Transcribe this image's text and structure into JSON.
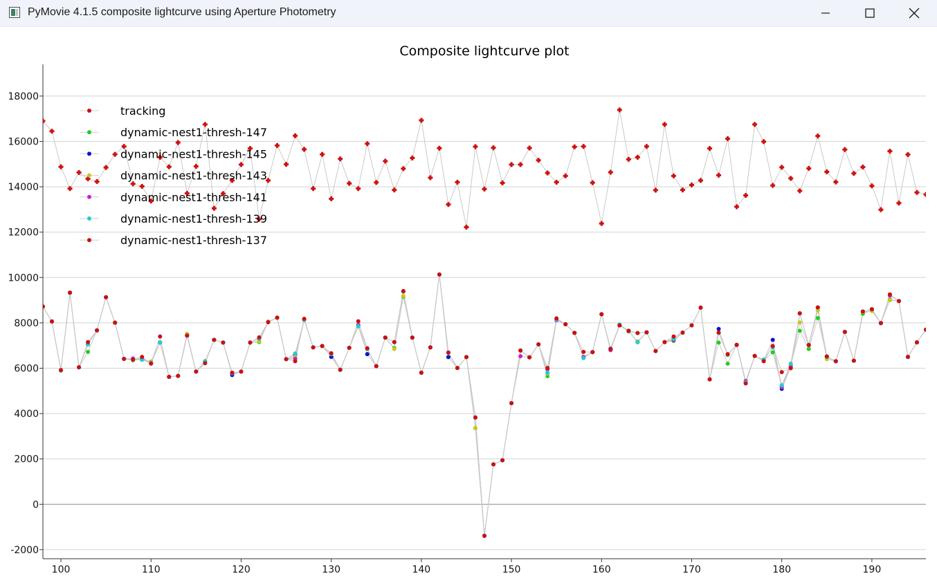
{
  "window": {
    "title": "PyMovie 4.1.5 composite lightcurve using Aperture Photometry",
    "controls": {
      "minimize": "minimize-icon",
      "maximize": "maximize-icon",
      "close": "close-icon"
    }
  },
  "chart_data": {
    "type": "scatter",
    "title": "Composite lightcurve plot",
    "xlabel": "",
    "ylabel": "",
    "xlim": [
      98,
      196
    ],
    "ylim": [
      -2400,
      19400
    ],
    "x_ticks": [
      100,
      110,
      120,
      130,
      140,
      150,
      160,
      170,
      180,
      190
    ],
    "y_ticks": [
      -2000,
      0,
      2000,
      4000,
      6000,
      8000,
      10000,
      12000,
      14000,
      16000,
      18000
    ],
    "grid": "horizontal",
    "legend_position": "top-left",
    "x": [
      98,
      99,
      100,
      101,
      102,
      103,
      104,
      105,
      106,
      107,
      108,
      109,
      110,
      111,
      112,
      113,
      114,
      115,
      116,
      117,
      118,
      119,
      120,
      121,
      122,
      123,
      124,
      125,
      126,
      127,
      128,
      129,
      130,
      131,
      132,
      133,
      134,
      135,
      136,
      137,
      138,
      139,
      140,
      141,
      142,
      143,
      144,
      145,
      146,
      147,
      148,
      149,
      150,
      151,
      152,
      153,
      154,
      155,
      156,
      157,
      158,
      159,
      160,
      161,
      162,
      163,
      164,
      165,
      166,
      167,
      168,
      169,
      170,
      171,
      172,
      173,
      174,
      175,
      176,
      177,
      178,
      179,
      180,
      181,
      182,
      183,
      184,
      185,
      186,
      187,
      188,
      189,
      190,
      191,
      192,
      193,
      194,
      195,
      196
    ],
    "series": [
      {
        "name": "tracking",
        "color": "#cc1111",
        "marker": "plus",
        "values": [
          16900,
          16450,
          14880,
          13920,
          14630,
          14350,
          14230,
          14850,
          15430,
          15780,
          14130,
          14020,
          13370,
          15300,
          14880,
          15950,
          13710,
          14900,
          16750,
          13050,
          13700,
          14280,
          14980,
          15690,
          12570,
          14280,
          15820,
          14990,
          16250,
          15650,
          13920,
          15430,
          13470,
          15230,
          14150,
          13920,
          15900,
          14190,
          15130,
          13860,
          14800,
          15270,
          16930,
          14400,
          15700,
          13220,
          14200,
          12220,
          15770,
          13900,
          15720,
          14170,
          14980,
          14980,
          15710,
          15170,
          14610,
          14200,
          14480,
          15760,
          15780,
          14180,
          12380,
          14640,
          17390,
          15210,
          15300,
          15780,
          13850,
          16750,
          14480,
          13860,
          14080,
          14280,
          15690,
          14510,
          16120,
          13120,
          13620,
          16750,
          15990,
          14060,
          14860,
          14370,
          13820,
          14810,
          16240,
          14660,
          14210,
          15640,
          14590,
          14870,
          14040,
          12990,
          15570,
          13280,
          15420,
          13750,
          13660
        ]
      },
      {
        "name": "dynamic-nest1-thresh-147",
        "color": "#22cc22",
        "marker": "dot",
        "values": [
          8720,
          8060,
          5900,
          9330,
          6040,
          6720,
          7670,
          9130,
          8010,
          6410,
          6350,
          6390,
          6230,
          7130,
          5620,
          5660,
          7480,
          5850,
          6310,
          7250,
          7130,
          5760,
          5850,
          7130,
          7150,
          8030,
          8230,
          6400,
          6420,
          8130,
          6920,
          6980,
          6520,
          5930,
          6900,
          7850,
          6620,
          6090,
          7350,
          6890,
          9150,
          7350,
          5800,
          6920,
          10130,
          6490,
          6010,
          6490,
          3360,
          -1390,
          1760,
          1940,
          4460,
          6780,
          6480,
          7050,
          5650,
          8120,
          7940,
          7560,
          6450,
          6710,
          8380,
          6870,
          7890,
          7620,
          7550,
          7580,
          6760,
          7150,
          7200,
          7570,
          7890,
          8670,
          5510,
          7130,
          6200,
          7030,
          5360,
          6540,
          6340,
          6700,
          5210,
          6150,
          7650,
          6850,
          8210,
          6520,
          6310,
          7600,
          6330,
          8400,
          8550,
          7990,
          9030,
          8960,
          6500,
          7140,
          7700
        ]
      },
      {
        "name": "dynamic-nest1-thresh-145",
        "color": "#1111cc",
        "marker": "dot",
        "values": [
          8720,
          8060,
          5900,
          9330,
          6040,
          7050,
          7670,
          9130,
          8010,
          6410,
          6380,
          6380,
          6220,
          7130,
          5620,
          5660,
          7440,
          5850,
          6280,
          7250,
          7130,
          5700,
          5850,
          7130,
          7310,
          8030,
          8230,
          6400,
          6600,
          8130,
          6920,
          6980,
          6500,
          5930,
          6900,
          7900,
          6620,
          6090,
          7350,
          7150,
          9400,
          7350,
          5800,
          6920,
          10130,
          6490,
          6010,
          6490,
          3820,
          -1390,
          1760,
          1940,
          4460,
          6780,
          6480,
          7050,
          5780,
          8180,
          7940,
          7560,
          6480,
          6710,
          8380,
          6800,
          7890,
          7650,
          7150,
          7580,
          6760,
          7150,
          7250,
          7570,
          7890,
          8670,
          5510,
          7730,
          6600,
          7030,
          5380,
          6540,
          6340,
          7250,
          5090,
          6050,
          8420,
          7030,
          8680,
          6520,
          6310,
          7600,
          6330,
          8500,
          8600,
          7990,
          9250,
          8960,
          6500,
          7140,
          7700
        ]
      },
      {
        "name": "dynamic-nest1-thresh-143",
        "color": "#c8c820",
        "marker": "dot",
        "values": [
          8720,
          8060,
          5900,
          9330,
          6040,
          7100,
          7670,
          9130,
          8010,
          6410,
          6380,
          6400,
          6300,
          7130,
          5620,
          5660,
          7520,
          5850,
          6250,
          7250,
          7130,
          5800,
          5850,
          7130,
          7180,
          8060,
          8230,
          6400,
          6500,
          8150,
          6920,
          6980,
          6620,
          5930,
          6900,
          7850,
          6850,
          6090,
          7350,
          6850,
          9180,
          7350,
          5800,
          6920,
          10130,
          6690,
          6010,
          6490,
          3360,
          -1390,
          1760,
          1940,
          4460,
          6780,
          6480,
          7050,
          5760,
          8150,
          7940,
          7560,
          6500,
          6710,
          8380,
          6840,
          7890,
          7650,
          7180,
          7580,
          6760,
          7150,
          7300,
          7570,
          7890,
          8670,
          5510,
          7560,
          6580,
          7030,
          5400,
          6540,
          6380,
          6950,
          5170,
          6100,
          8020,
          7000,
          8540,
          6400,
          6310,
          7600,
          6330,
          8480,
          8520,
          7990,
          9000,
          8960,
          6500,
          7140,
          7700
        ]
      },
      {
        "name": "dynamic-nest1-thresh-141",
        "color": "#cc22cc",
        "marker": "dot",
        "values": [
          8720,
          8060,
          5900,
          9330,
          6040,
          7050,
          7670,
          9130,
          8010,
          6410,
          6430,
          6400,
          6240,
          7130,
          5620,
          5660,
          7440,
          5850,
          6280,
          7250,
          7130,
          5780,
          5850,
          7130,
          7300,
          8030,
          8230,
          6400,
          6420,
          8130,
          6920,
          6980,
          6650,
          5930,
          6900,
          7900,
          6850,
          6090,
          7350,
          7150,
          9380,
          7350,
          5800,
          6920,
          10130,
          6690,
          6010,
          6490,
          3820,
          -1390,
          1760,
          1940,
          4460,
          6530,
          6480,
          7050,
          5950,
          8120,
          7940,
          7560,
          6500,
          6710,
          8380,
          6800,
          7890,
          7650,
          7150,
          7580,
          6760,
          7150,
          7250,
          7570,
          7890,
          8670,
          5510,
          7570,
          6600,
          7030,
          5440,
          6540,
          6380,
          6920,
          5170,
          6060,
          8420,
          7020,
          8680,
          6500,
          6310,
          7600,
          6330,
          8500,
          8600,
          7990,
          9200,
          8960,
          6500,
          7140,
          7700
        ]
      },
      {
        "name": "dynamic-nest1-thresh-139",
        "color": "#22cccc",
        "marker": "dot",
        "values": [
          8720,
          8060,
          5900,
          9330,
          6040,
          7050,
          7670,
          9130,
          8010,
          6410,
          6380,
          6370,
          6220,
          7130,
          5620,
          5660,
          7440,
          5850,
          6280,
          7250,
          7130,
          5780,
          5850,
          7130,
          7300,
          8030,
          8230,
          6400,
          6650,
          8130,
          6920,
          6980,
          6620,
          5930,
          6900,
          7850,
          6850,
          6090,
          7350,
          7150,
          9380,
          7350,
          5800,
          6920,
          10130,
          6690,
          6010,
          6490,
          3820,
          -1390,
          1760,
          1940,
          4460,
          6780,
          6480,
          7050,
          5800,
          8150,
          7940,
          7560,
          6450,
          6710,
          8380,
          6870,
          7930,
          7650,
          7150,
          7580,
          6760,
          7150,
          7300,
          7570,
          7890,
          8670,
          5510,
          7560,
          6600,
          7030,
          5380,
          6540,
          6380,
          6920,
          5250,
          6200,
          8420,
          7030,
          8680,
          6500,
          6310,
          7600,
          6330,
          8500,
          8600,
          7990,
          9250,
          8960,
          6500,
          7140,
          7700
        ]
      },
      {
        "name": "dynamic-nest1-thresh-137",
        "color": "#cc1111",
        "marker": "dot",
        "values": [
          8720,
          8060,
          5920,
          9330,
          6040,
          7150,
          7670,
          9130,
          8010,
          6410,
          6380,
          6500,
          6200,
          7400,
          5620,
          5660,
          7440,
          5850,
          6220,
          7250,
          7130,
          5800,
          5850,
          7130,
          7360,
          8030,
          8230,
          6400,
          6310,
          8180,
          6920,
          6980,
          6660,
          5930,
          6900,
          8070,
          6880,
          6090,
          7350,
          7150,
          9400,
          7350,
          5800,
          6920,
          10130,
          6690,
          6010,
          6490,
          3830,
          -1390,
          1760,
          1940,
          4460,
          6780,
          6480,
          7050,
          6010,
          8200,
          7940,
          7560,
          6720,
          6710,
          8380,
          6850,
          7890,
          7650,
          7550,
          7580,
          6760,
          7150,
          7400,
          7570,
          7890,
          8670,
          5510,
          7570,
          6620,
          7030,
          5330,
          6540,
          6310,
          6980,
          5830,
          6000,
          8420,
          7020,
          8680,
          6520,
          6310,
          7600,
          6330,
          8500,
          8600,
          7990,
          9250,
          8960,
          6500,
          7140,
          7700
        ]
      }
    ]
  }
}
